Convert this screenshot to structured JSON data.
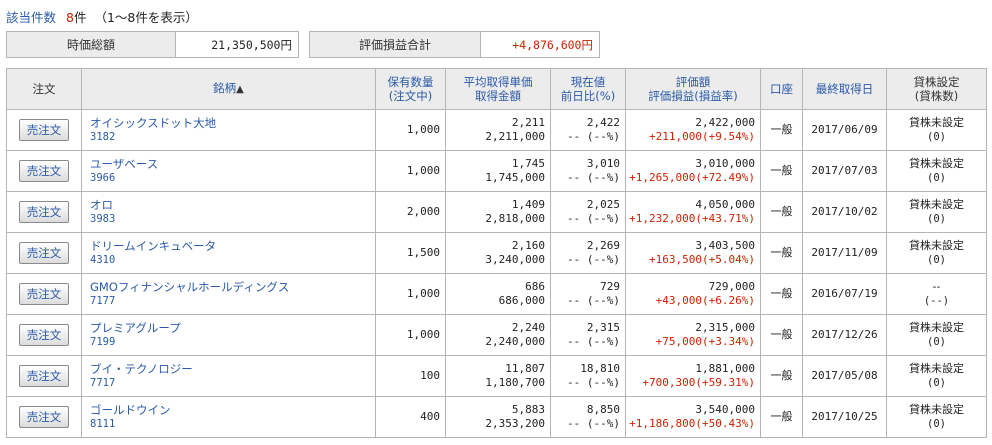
{
  "summary_line": {
    "label": "該当件数",
    "count": "8",
    "unit": "件",
    "range": "（1～8件を表示）"
  },
  "market_value": {
    "label": "時価総額",
    "value": "21,350,500円"
  },
  "total_pl": {
    "label": "評価損益合計",
    "value": "+4,876,600円"
  },
  "headers": {
    "order": "注文",
    "name": "銘柄",
    "sort_indicator": "▲",
    "qty_line1": "保有数量",
    "qty_line2": "(注文中)",
    "avg_line1": "平均取得単価",
    "avg_line2": "取得金額",
    "price_line1": "現在値",
    "price_line2": "前日比(%)",
    "val_line1": "評価額",
    "val_line2": "評価損益(損益率)",
    "account": "口座",
    "last_date": "最終取得日",
    "lend_line1": "貸株設定",
    "lend_line2": "(貸株数)"
  },
  "rows": [
    {
      "button": "売注文",
      "name": "オイシックスドット大地",
      "code": "3182",
      "qty": "1,000",
      "avg": "2,211",
      "cost": "2,211,000",
      "price": "2,422",
      "change": "-- (--%)",
      "value": "2,422,000",
      "pl": "+211,000(+9.54%)",
      "account": "一般",
      "date": "2017/06/09",
      "lend": "貸株未設定",
      "lend_qty": "(0)"
    },
    {
      "button": "売注文",
      "name": "ユーザベース",
      "code": "3966",
      "qty": "1,000",
      "avg": "1,745",
      "cost": "1,745,000",
      "price": "3,010",
      "change": "-- (--%)",
      "value": "3,010,000",
      "pl": "+1,265,000(+72.49%)",
      "account": "一般",
      "date": "2017/07/03",
      "lend": "貸株未設定",
      "lend_qty": "(0)"
    },
    {
      "button": "売注文",
      "name": "オロ",
      "code": "3983",
      "qty": "2,000",
      "avg": "1,409",
      "cost": "2,818,000",
      "price": "2,025",
      "change": "-- (--%)",
      "value": "4,050,000",
      "pl": "+1,232,000(+43.71%)",
      "account": "一般",
      "date": "2017/10/02",
      "lend": "貸株未設定",
      "lend_qty": "(0)"
    },
    {
      "button": "売注文",
      "name": "ドリームインキュベータ",
      "code": "4310",
      "qty": "1,500",
      "avg": "2,160",
      "cost": "3,240,000",
      "price": "2,269",
      "change": "-- (--%)",
      "value": "3,403,500",
      "pl": "+163,500(+5.04%)",
      "account": "一般",
      "date": "2017/11/09",
      "lend": "貸株未設定",
      "lend_qty": "(0)"
    },
    {
      "button": "売注文",
      "name": "GMOフィナンシャルホールディングス",
      "code": "7177",
      "qty": "1,000",
      "avg": "686",
      "cost": "686,000",
      "price": "729",
      "change": "-- (--%)",
      "value": "729,000",
      "pl": "+43,000(+6.26%)",
      "account": "一般",
      "date": "2016/07/19",
      "lend": "--",
      "lend_qty": "(--)"
    },
    {
      "button": "売注文",
      "name": "プレミアグループ",
      "code": "7199",
      "qty": "1,000",
      "avg": "2,240",
      "cost": "2,240,000",
      "price": "2,315",
      "change": "-- (--%)",
      "value": "2,315,000",
      "pl": "+75,000(+3.34%)",
      "account": "一般",
      "date": "2017/12/26",
      "lend": "貸株未設定",
      "lend_qty": "(0)"
    },
    {
      "button": "売注文",
      "name": "ブイ・テクノロジー",
      "code": "7717",
      "qty": "100",
      "avg": "11,807",
      "cost": "1,180,700",
      "price": "18,810",
      "change": "-- (--%)",
      "value": "1,881,000",
      "pl": "+700,300(+59.31%)",
      "account": "一般",
      "date": "2017/05/08",
      "lend": "貸株未設定",
      "lend_qty": "(0)"
    },
    {
      "button": "売注文",
      "name": "ゴールドウイン",
      "code": "8111",
      "qty": "400",
      "avg": "5,883",
      "cost": "2,353,200",
      "price": "8,850",
      "change": "-- (--%)",
      "value": "3,540,000",
      "pl": "+1,186,800(+50.43%)",
      "account": "一般",
      "date": "2017/10/25",
      "lend": "貸株未設定",
      "lend_qty": "(0)"
    }
  ]
}
